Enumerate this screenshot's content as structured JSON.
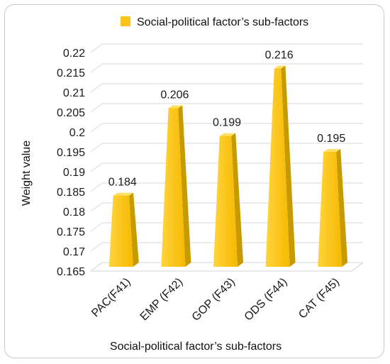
{
  "chart_data": {
    "type": "bar",
    "title": "",
    "legend": {
      "placement": "top",
      "series_name": "Social-political factor’s sub-factors"
    },
    "xlabel": "Social-political factor’s sub-factors",
    "ylabel": "Weight value",
    "ylim": [
      0.165,
      0.22
    ],
    "yticks": [
      "0.165",
      "0.17",
      "0.175",
      "0.18",
      "0.185",
      "0.19",
      "0.195",
      "0.2",
      "0.205",
      "0.21",
      "0.215",
      "0.22"
    ],
    "categories": [
      "PAC(F41)",
      "EMP (F42)",
      "GOP (F43)",
      "ODS (F44)",
      "CAT  (F45)"
    ],
    "series": [
      {
        "name": "Social-political factor’s sub-factors",
        "values": [
          0.184,
          0.206,
          0.199,
          0.216,
          0.195
        ]
      }
    ],
    "data_labels": [
      "0.184",
      "0.206",
      "0.199",
      "0.216",
      "0.195"
    ],
    "colors": {
      "bar_front": "#fcc419",
      "bar_side": "#c79a00",
      "bar_top": "#ffe066",
      "grid": "#d9d9d9"
    },
    "grid": true
  }
}
